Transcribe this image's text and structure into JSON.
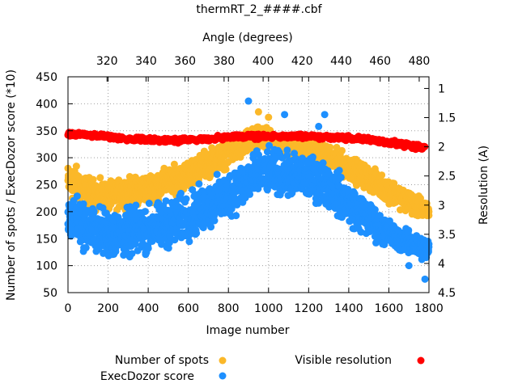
{
  "chart_data": {
    "type": "scatter",
    "title": "thermRT_2_####.cbf",
    "xlabel": "Image number",
    "ylabel": "Number of spots / ExecDozor score (*10)",
    "x2label": "Angle (degrees)",
    "y2label": "Resolution (A)",
    "xlim": [
      0,
      1800
    ],
    "ylim": [
      50,
      450
    ],
    "x2lim": [
      300,
      485
    ],
    "y2lim": [
      0.8,
      4.5
    ],
    "y2_inverted": true,
    "grid": true,
    "legend_position": "bottom",
    "x_ticks": [
      "0",
      "200",
      "400",
      "600",
      "800",
      "1000",
      "1200",
      "1400",
      "1600",
      "1800"
    ],
    "y_ticks": [
      "50",
      "100",
      "150",
      "200",
      "250",
      "300",
      "350",
      "400",
      "450"
    ],
    "x2_ticks": [
      "320",
      "340",
      "360",
      "380",
      "400",
      "420",
      "440",
      "460",
      "480"
    ],
    "y2_ticks": [
      "1",
      "1.5",
      "2",
      "2.5",
      "3",
      "3.5",
      "4",
      "4.5"
    ],
    "series": [
      {
        "name": "Number of spots",
        "axis": "y1",
        "color": "#fbb829",
        "x": [
          0,
          50,
          100,
          150,
          200,
          250,
          300,
          350,
          400,
          450,
          500,
          550,
          600,
          650,
          700,
          750,
          800,
          850,
          900,
          950,
          1000,
          1050,
          1100,
          1150,
          1200,
          1250,
          1300,
          1350,
          1400,
          1450,
          1500,
          1550,
          1600,
          1650,
          1700,
          1750,
          1800
        ],
        "y": [
          255,
          250,
          235,
          230,
          228,
          232,
          238,
          240,
          245,
          250,
          255,
          262,
          270,
          280,
          290,
          300,
          310,
          320,
          330,
          335,
          330,
          322,
          318,
          315,
          312,
          308,
          300,
          292,
          282,
          272,
          262,
          250,
          240,
          230,
          218,
          208,
          198
        ],
        "spread": [
          45,
          45,
          40,
          38,
          35,
          35,
          35,
          35,
          35,
          35,
          35,
          35,
          35,
          35,
          35,
          35,
          35,
          35,
          30,
          30,
          30,
          30,
          30,
          30,
          30,
          30,
          30,
          30,
          30,
          30,
          30,
          30,
          30,
          30,
          28,
          25,
          20
        ]
      },
      {
        "name": "ExecDozor score",
        "axis": "y1",
        "color": "#1e90ff",
        "x": [
          0,
          50,
          100,
          150,
          200,
          250,
          300,
          350,
          400,
          450,
          500,
          550,
          600,
          650,
          700,
          750,
          800,
          850,
          900,
          950,
          1000,
          1050,
          1100,
          1150,
          1200,
          1250,
          1300,
          1350,
          1400,
          1450,
          1500,
          1550,
          1600,
          1650,
          1700,
          1750,
          1800
        ],
        "y": [
          190,
          185,
          170,
          165,
          160,
          158,
          160,
          165,
          168,
          172,
          178,
          185,
          192,
          200,
          210,
          220,
          232,
          245,
          258,
          270,
          275,
          272,
          268,
          265,
          262,
          258,
          248,
          232,
          215,
          200,
          185,
          172,
          160,
          150,
          142,
          135,
          130
        ],
        "spread": [
          55,
          60,
          60,
          60,
          60,
          60,
          60,
          60,
          60,
          60,
          60,
          60,
          60,
          60,
          60,
          60,
          60,
          60,
          60,
          55,
          55,
          55,
          55,
          55,
          55,
          55,
          55,
          55,
          55,
          50,
          45,
          40,
          35,
          30,
          30,
          30,
          30
        ]
      },
      {
        "name": "Visible resolution",
        "axis": "y2",
        "color": "#ff0000",
        "x": [
          0,
          100,
          200,
          300,
          400,
          500,
          600,
          700,
          800,
          900,
          1000,
          1100,
          1200,
          1300,
          1400,
          1500,
          1600,
          1700,
          1780
        ],
        "y": [
          1.78,
          1.8,
          1.83,
          1.87,
          1.88,
          1.89,
          1.88,
          1.86,
          1.84,
          1.82,
          1.82,
          1.82,
          1.82,
          1.84,
          1.85,
          1.88,
          1.93,
          1.98,
          2.0
        ],
        "spread": [
          0.06,
          0.06,
          0.06,
          0.06,
          0.06,
          0.06,
          0.06,
          0.06,
          0.06,
          0.06,
          0.06,
          0.06,
          0.06,
          0.06,
          0.06,
          0.06,
          0.07,
          0.08,
          0.08
        ]
      }
    ],
    "outliers": [
      {
        "series": "Number of spots",
        "x": [
          950,
          1000
        ],
        "y": [
          385,
          375
        ]
      },
      {
        "series": "ExecDozor score",
        "x": [
          900,
          1080,
          1280,
          1250,
          1700,
          1780
        ],
        "y": [
          405,
          380,
          380,
          358,
          100,
          75
        ]
      }
    ]
  }
}
